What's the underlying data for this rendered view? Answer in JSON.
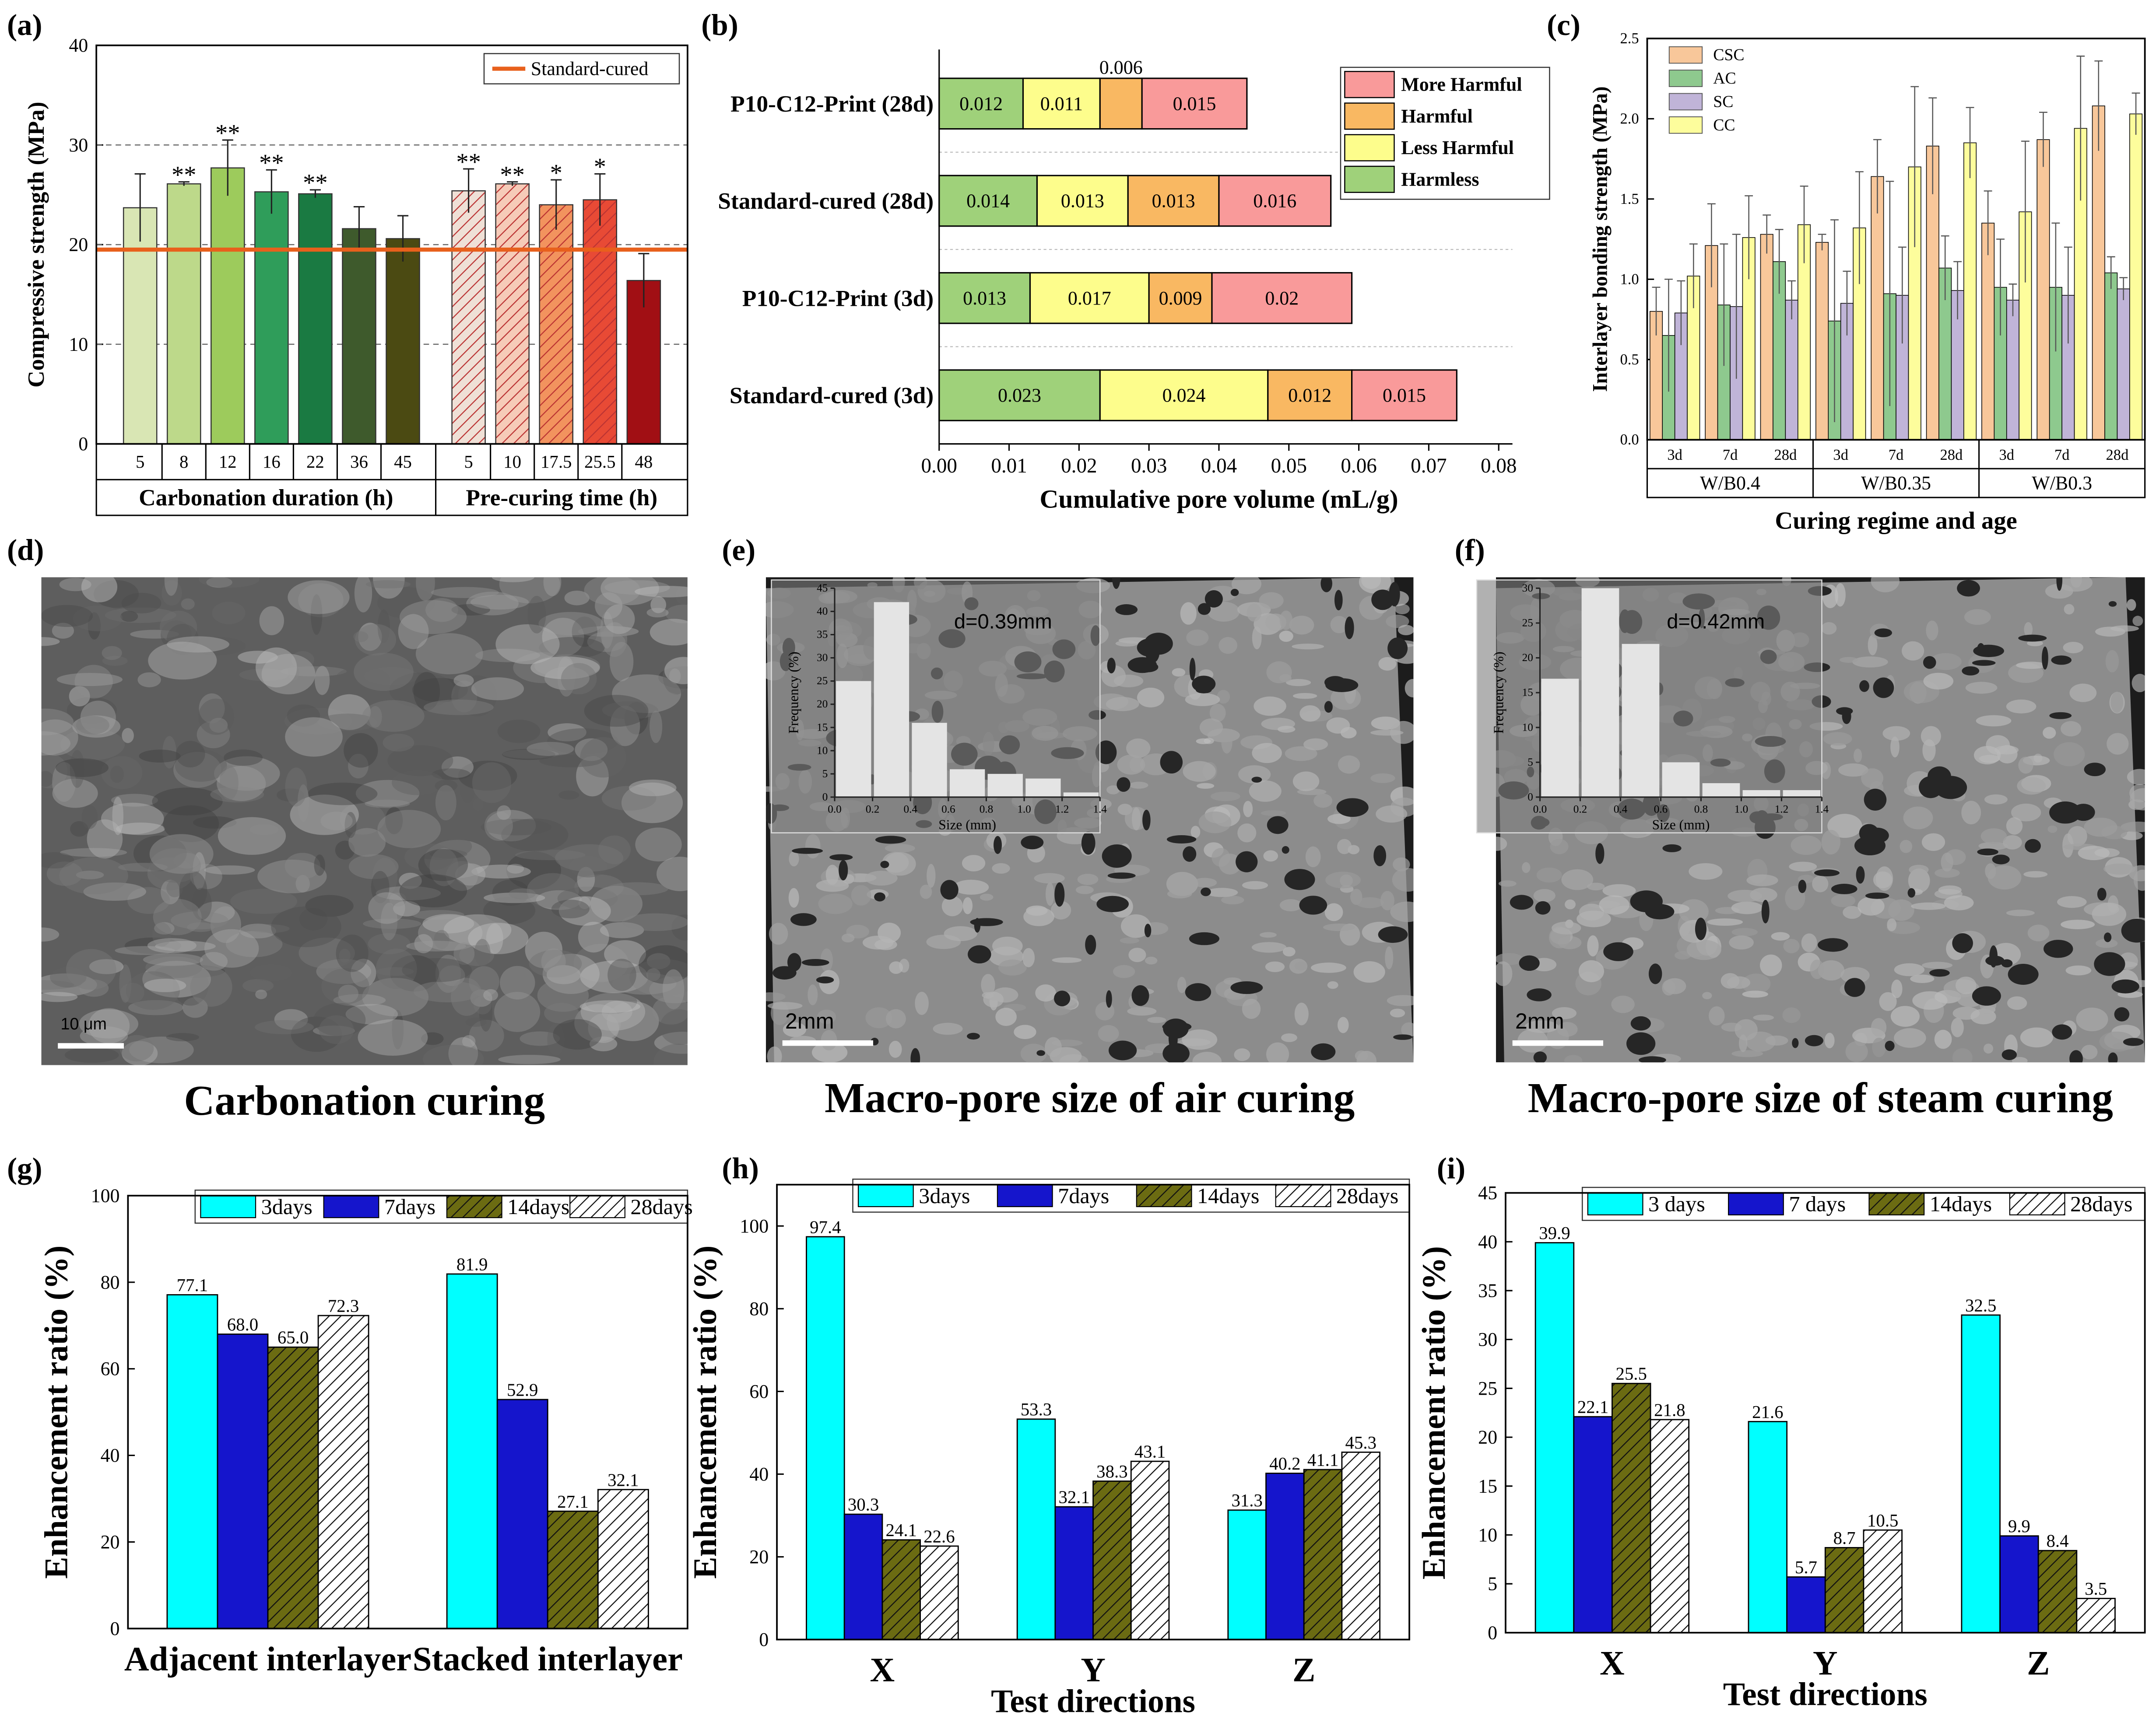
{
  "chart_data": [
    {
      "type": "bar",
      "panel_label": "(a)",
      "ylabel": "Compressive strength (MPa)",
      "ylim": [
        0,
        40
      ],
      "yticks": [
        0,
        10,
        20,
        30,
        40
      ],
      "grid": true,
      "significance_color": "#e04848",
      "reference": {
        "name": "Standard-cured",
        "value": 19.5,
        "color": "#e8601c"
      },
      "groups": [
        {
          "label": "Carbonation duration (h)",
          "categories": [
            "5",
            "8",
            "12",
            "16",
            "22",
            "36",
            "45"
          ],
          "values": [
            23.7,
            26.1,
            27.7,
            25.3,
            25.1,
            21.6,
            20.6
          ],
          "errors": [
            3.4,
            0.2,
            2.8,
            2.2,
            0.4,
            2.2,
            2.3
          ],
          "colors": [
            "#d9e6b4",
            "#bdd98a",
            "#9dcb5c",
            "#2f9d5a",
            "#1a7a42",
            "#3e5a2c",
            "#4b4a12"
          ],
          "hatch": [
            false,
            false,
            false,
            false,
            false,
            false,
            false
          ],
          "significance": [
            null,
            "**",
            "**",
            "**",
            "**",
            null,
            null
          ]
        },
        {
          "label": "Pre-curing time (h)",
          "categories": [
            "5",
            "10",
            "17.5",
            "25.5",
            "48"
          ],
          "values": [
            25.4,
            26.1,
            24.0,
            24.5,
            16.4
          ],
          "errors": [
            2.2,
            0.2,
            2.5,
            2.6,
            2.7
          ],
          "colors": [
            "#efe0d6",
            "#f6cbb8",
            "#f2935e",
            "#e84a35",
            "#a10f14"
          ],
          "hatch": [
            true,
            true,
            true,
            true,
            false
          ],
          "significance": [
            "**",
            "**",
            "*",
            "*",
            null
          ]
        }
      ]
    },
    {
      "type": "stacked_bar",
      "orientation": "horizontal",
      "panel_label": "(b)",
      "xlabel": "Cumulative pore volume (mL/g)",
      "categories": [
        "P10-C12-Print (28d)",
        "Standard-cured (28d)",
        "P10-C12-Print (3d)",
        "Standard-cured (3d)"
      ],
      "xlim": [
        0,
        0.08
      ],
      "xticks": [
        {
          "value": 0,
          "label": "0.00"
        },
        0.01,
        0.02,
        0.03,
        0.04,
        0.05,
        0.06,
        0.07,
        0.08
      ],
      "legend": "upper right",
      "series": [
        {
          "name": "Harmless",
          "color": "#9fd17a",
          "values": [
            0.012,
            0.014,
            0.013,
            0.023
          ]
        },
        {
          "name": "Less Harmful",
          "color": "#fdfd8c",
          "values": [
            0.011,
            0.013,
            0.017,
            0.024
          ]
        },
        {
          "name": "Harmful",
          "color": "#f9b862",
          "values": [
            0.006,
            0.013,
            0.009,
            0.012
          ]
        },
        {
          "name": "More Harmful",
          "color": "#f99a9a",
          "values": [
            0.015,
            0.016,
            0.02,
            0.015
          ]
        }
      ]
    },
    {
      "type": "grouped_bar",
      "panel_label": "(c)",
      "xlabel": "Curing regime and age",
      "ylabel": "Interlayer bonding strength (MPa)",
      "ylim": [
        0,
        2.5
      ],
      "yticks": [
        {
          "value": 0,
          "label": "0.0"
        },
        0.5,
        {
          "value": 1,
          "label": "1.0"
        },
        1.5,
        {
          "value": 2,
          "label": "2.0"
        },
        2.5
      ],
      "legend": "upper left",
      "groups": [
        {
          "label": "W/B0.4",
          "categories": [
            "3d",
            "7d",
            "28d"
          ]
        },
        {
          "label": "W/B0.35",
          "categories": [
            "3d",
            "7d",
            "28d"
          ]
        },
        {
          "label": "W/B0.3",
          "categories": [
            "3d",
            "7d",
            "28d"
          ]
        }
      ],
      "series": [
        {
          "name": "CSC",
          "color": "#f8c79a",
          "values": [
            0.8,
            1.21,
            1.28,
            1.23,
            1.64,
            1.83,
            1.35,
            1.87,
            2.08
          ],
          "errors": [
            0.15,
            0.26,
            0.12,
            0.05,
            0.23,
            0.3,
            0.2,
            0.17,
            0.28
          ]
        },
        {
          "name": "AC",
          "color": "#8ec98e",
          "values": [
            0.65,
            0.84,
            1.11,
            0.74,
            0.91,
            1.07,
            0.95,
            0.95,
            1.04
          ],
          "errors": [
            0.35,
            0.38,
            0.2,
            0.63,
            0.7,
            0.2,
            0.3,
            0.4,
            0.1
          ]
        },
        {
          "name": "SC",
          "color": "#c0b4d8",
          "values": [
            0.79,
            0.83,
            0.87,
            0.85,
            0.9,
            0.93,
            0.87,
            0.9,
            0.94
          ],
          "errors": [
            0.2,
            0.45,
            0.12,
            0.2,
            0.3,
            0.18,
            0.1,
            0.3,
            0.07
          ]
        },
        {
          "name": "CC",
          "color": "#fdfd9c",
          "values": [
            1.02,
            1.26,
            1.34,
            1.32,
            1.7,
            1.85,
            1.42,
            1.94,
            2.03
          ],
          "errors": [
            0.2,
            0.26,
            0.24,
            0.35,
            0.5,
            0.22,
            0.44,
            0.45,
            0.13
          ]
        }
      ]
    },
    {
      "type": "image",
      "panel_label": "(d)",
      "caption": "Carbonation curing",
      "scale_bar": "10 μm"
    },
    {
      "type": "histogram",
      "panel_label": "(e)",
      "caption": "Macro-pore size of air curing",
      "scale_bar": "2mm",
      "annotation": "d=0.39mm",
      "xlabel": "Size (mm)",
      "ylabel": "Frequency (%)",
      "color": "#e4e4e4",
      "bins": [
        0,
        0.2,
        0.4,
        0.6,
        0.8,
        1,
        1.2,
        1.4
      ],
      "values": [
        25,
        42,
        16,
        6,
        5,
        4,
        1
      ],
      "xlim": [
        0,
        1.4
      ],
      "xticks": [
        {
          "value": 0,
          "label": "0.0"
        },
        0.2,
        0.4,
        0.6,
        0.8,
        {
          "value": 1,
          "label": "1.0"
        },
        1.2,
        1.4
      ],
      "ylim": [
        0,
        45
      ],
      "yticks": [
        0,
        5,
        10,
        15,
        20,
        25,
        30,
        35,
        40,
        45
      ]
    },
    {
      "type": "histogram",
      "panel_label": "(f)",
      "caption": "Macro-pore size of steam curing",
      "scale_bar": "2mm",
      "annotation": "d=0.42mm",
      "xlabel": "Size (mm)",
      "ylabel": "Frequency (%)",
      "color": "#e4e4e4",
      "bins": [
        0,
        0.2,
        0.4,
        0.6,
        0.8,
        1,
        1.2,
        1.4
      ],
      "values": [
        17,
        30,
        22,
        5,
        2,
        1,
        1
      ],
      "xlim": [
        0,
        1.4
      ],
      "xticks": [
        {
          "value": 0,
          "label": "0.0"
        },
        0.2,
        0.4,
        0.6,
        0.8,
        {
          "value": 1,
          "label": "1.0"
        },
        1.2,
        1.4
      ],
      "ylim": [
        0,
        30
      ],
      "yticks": [
        0,
        5,
        10,
        15,
        20,
        25,
        30
      ]
    },
    {
      "type": "grouped_bar",
      "panel_label": "(g)",
      "ylabel": "Enhancement ratio (%)",
      "data_labels": true,
      "legend": "top",
      "categories": [
        "Adjacent interlayer",
        "Stacked interlayer"
      ],
      "ylim": [
        0,
        100
      ],
      "yticks": [
        0,
        20,
        40,
        60,
        80,
        100
      ],
      "series": [
        {
          "name": "3days",
          "color": "#00ffff",
          "values": [
            77.1,
            81.9
          ]
        },
        {
          "name": "7days",
          "color": "#1515cc",
          "values": [
            68.0,
            52.9
          ],
          "value_labels": [
            "68.0",
            "52.9"
          ]
        },
        {
          "name": "14days",
          "color": "#6b6b12",
          "hatch": true,
          "values": [
            65.0,
            27.1
          ],
          "value_labels": [
            "65.0",
            "27.1"
          ]
        },
        {
          "name": "28days",
          "color": "#ffffff",
          "hatch": true,
          "values": [
            72.3,
            32.1
          ]
        }
      ]
    },
    {
      "type": "grouped_bar",
      "panel_label": "(h)",
      "ylabel": "Enhancement ratio (%)",
      "xlabel": "Test directions",
      "data_labels": true,
      "legend": "top",
      "categories": [
        "X",
        "Y",
        "Z"
      ],
      "ylim": [
        0,
        110
      ],
      "yticks": [
        0,
        20,
        40,
        60,
        80,
        100
      ],
      "series": [
        {
          "name": "3days",
          "color": "#00ffff",
          "values": [
            97.4,
            53.3,
            31.3
          ]
        },
        {
          "name": "7days",
          "color": "#1515cc",
          "values": [
            30.3,
            32.1,
            40.2
          ]
        },
        {
          "name": "14days",
          "color": "#6b6b12",
          "hatch": true,
          "values": [
            24.1,
            38.3,
            41.1
          ]
        },
        {
          "name": "28days",
          "color": "#ffffff",
          "hatch": true,
          "values": [
            22.6,
            43.1,
            45.3
          ]
        }
      ]
    },
    {
      "type": "grouped_bar",
      "panel_label": "(i)",
      "ylabel": "Enhancement ratio (%)",
      "xlabel": "Test directions",
      "data_labels": true,
      "legend": "top",
      "categories": [
        "X",
        "Y",
        "Z"
      ],
      "ylim": [
        0,
        45
      ],
      "yticks": [
        0,
        5,
        10,
        15,
        20,
        25,
        30,
        35,
        40,
        45
      ],
      "series": [
        {
          "name": "3 days",
          "color": "#00ffff",
          "values": [
            39.9,
            21.6,
            32.5
          ]
        },
        {
          "name": "7 days",
          "color": "#1515cc",
          "values": [
            22.1,
            5.7,
            9.9
          ]
        },
        {
          "name": "14days",
          "color": "#6b6b12",
          "hatch": true,
          "values": [
            25.5,
            8.7,
            8.4
          ]
        },
        {
          "name": "28days",
          "color": "#ffffff",
          "hatch": true,
          "values": [
            21.8,
            10.5,
            3.5
          ]
        }
      ]
    }
  ]
}
